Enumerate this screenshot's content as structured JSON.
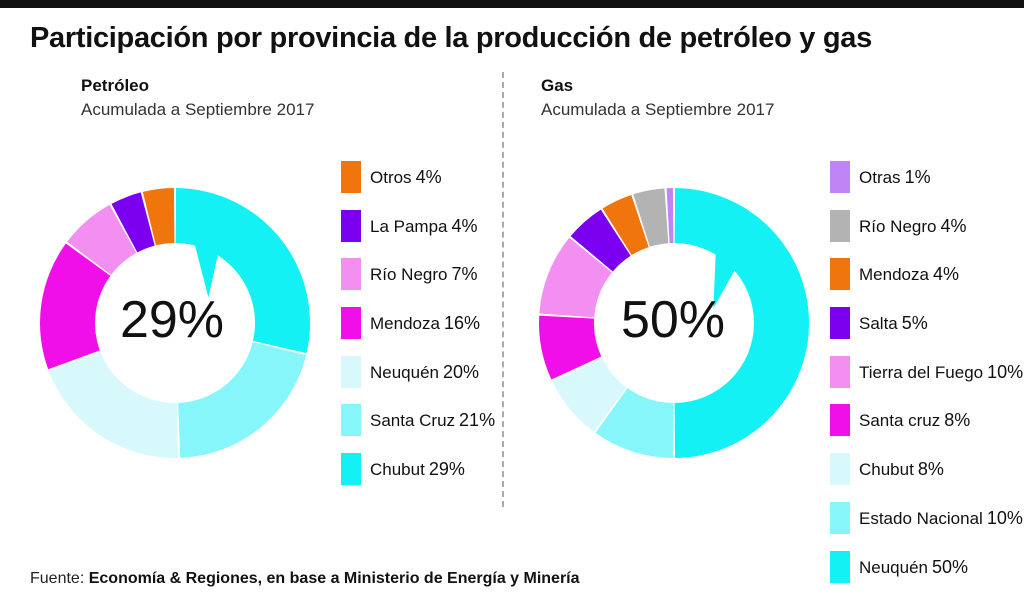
{
  "title": "Participación por provincia de la producción de petróleo y gas",
  "panels": [
    {
      "heading": "Petróleo",
      "subtitle": "Acumulada a Septiembre 2017",
      "center_label": "29%"
    },
    {
      "heading": "Gas",
      "subtitle": "Acumulada a Septiembre 2017",
      "center_label": "50%"
    }
  ],
  "source": {
    "prefix": "Fuente:",
    "text": "Economía & Regiones, en base a Ministerio de Energía y Minería"
  },
  "chart_data": [
    {
      "type": "pie",
      "title": "Petróleo",
      "subtitle": "Acumulada a Septiembre 2017",
      "slices": [
        {
          "label": "Otros",
          "value": 4,
          "color": "#f0750d"
        },
        {
          "label": "La Pampa",
          "value": 4,
          "color": "#7b00f0"
        },
        {
          "label": "Río Negro",
          "value": 7,
          "color": "#f28ff0"
        },
        {
          "label": "Mendoza",
          "value": 16,
          "color": "#f00fe8"
        },
        {
          "label": "Neuquén",
          "value": 20,
          "color": "#d8f9fb"
        },
        {
          "label": "Santa Cruz",
          "value": 21,
          "color": "#87f6fb"
        },
        {
          "label": "Chubut",
          "value": 29,
          "color": "#13f1f4"
        }
      ],
      "draw_order": [
        "Chubut",
        "Santa Cruz",
        "Neuquén",
        "Mendoza",
        "Río Negro",
        "La Pampa",
        "Otros"
      ],
      "legend_position": "right"
    },
    {
      "type": "pie",
      "title": "Gas",
      "subtitle": "Acumulada a Septiembre 2017",
      "slices": [
        {
          "label": "Otras",
          "value": 1,
          "color": "#c084f5"
        },
        {
          "label": "Río Negro",
          "value": 4,
          "color": "#b3b3b3"
        },
        {
          "label": "Mendoza",
          "value": 4,
          "color": "#f0750d"
        },
        {
          "label": "Salta",
          "value": 5,
          "color": "#7b00f0"
        },
        {
          "label": "Tierra del Fuego",
          "value": 10,
          "color": "#f28ff0"
        },
        {
          "label": "Santa cruz",
          "value": 8,
          "color": "#f00fe8"
        },
        {
          "label": "Chubut",
          "value": 8,
          "color": "#d8f9fb"
        },
        {
          "label": "Estado Nacional",
          "value": 10,
          "color": "#87f6fb"
        },
        {
          "label": "Neuquén",
          "value": 50,
          "color": "#13f1f4"
        }
      ],
      "draw_order": [
        "Neuquén",
        "Estado Nacional",
        "Chubut",
        "Santa cruz",
        "Tierra del Fuego",
        "Salta",
        "Mendoza",
        "Río Negro",
        "Otras"
      ],
      "legend_position": "right"
    }
  ]
}
